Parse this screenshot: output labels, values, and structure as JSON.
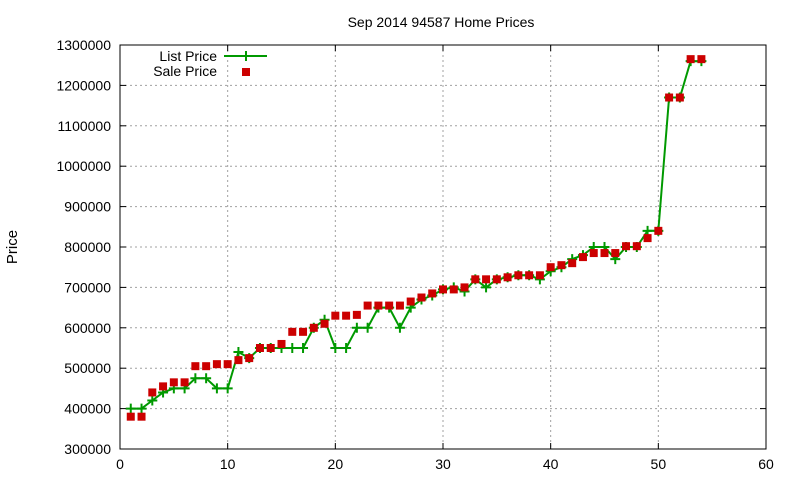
{
  "chart_data": {
    "type": "line",
    "title": "Sep 2014 94587 Home Prices",
    "xlabel": "",
    "ylabel": "Price",
    "xlim": [
      0,
      60
    ],
    "ylim": [
      300000,
      1300000
    ],
    "xticks": [
      0,
      10,
      20,
      30,
      40,
      50,
      60
    ],
    "yticks": [
      300000,
      400000,
      500000,
      600000,
      700000,
      800000,
      900000,
      1000000,
      1100000,
      1200000,
      1300000
    ],
    "grid": true,
    "legend_position": "top-left",
    "series": [
      {
        "name": "List Price",
        "style": "line+cross",
        "color": "#009900",
        "x": [
          1,
          2,
          3,
          4,
          5,
          6,
          7,
          8,
          9,
          10,
          11,
          12,
          13,
          14,
          15,
          16,
          17,
          18,
          19,
          20,
          21,
          22,
          23,
          24,
          25,
          26,
          27,
          28,
          29,
          30,
          31,
          32,
          33,
          34,
          35,
          36,
          37,
          38,
          39,
          40,
          41,
          42,
          43,
          44,
          45,
          46,
          47,
          48,
          49,
          50,
          51,
          52,
          53,
          54
        ],
        "y": [
          400000,
          400000,
          420000,
          440000,
          450000,
          450000,
          475000,
          475000,
          450000,
          450000,
          540000,
          525000,
          550000,
          550000,
          550000,
          550000,
          550000,
          600000,
          620000,
          550000,
          550000,
          600000,
          600000,
          650000,
          650000,
          600000,
          650000,
          670000,
          680000,
          695000,
          700000,
          690000,
          720000,
          700000,
          720000,
          725000,
          730000,
          730000,
          720000,
          740000,
          750000,
          770000,
          780000,
          800000,
          800000,
          770000,
          800000,
          800000,
          840000,
          840000,
          1170000,
          1170000,
          1260000,
          1260000
        ]
      },
      {
        "name": "Sale Price",
        "style": "square-points",
        "color": "#cc0000",
        "x": [
          1,
          2,
          3,
          4,
          5,
          6,
          7,
          8,
          9,
          10,
          11,
          12,
          13,
          14,
          15,
          16,
          17,
          18,
          19,
          20,
          21,
          22,
          23,
          24,
          25,
          26,
          27,
          28,
          29,
          30,
          31,
          32,
          33,
          34,
          35,
          36,
          37,
          38,
          39,
          40,
          41,
          42,
          43,
          44,
          45,
          46,
          47,
          48,
          49,
          50,
          51,
          52,
          53,
          54
        ],
        "y": [
          380000,
          380000,
          440000,
          455000,
          465000,
          465000,
          505000,
          505000,
          510000,
          510000,
          520000,
          525000,
          550000,
          550000,
          560000,
          590000,
          590000,
          600000,
          610000,
          630000,
          630000,
          632000,
          655000,
          655000,
          655000,
          655000,
          665000,
          675000,
          685000,
          695000,
          695000,
          700000,
          720000,
          720000,
          720000,
          725000,
          730000,
          730000,
          730000,
          750000,
          755000,
          760000,
          775000,
          785000,
          785000,
          785000,
          802000,
          802000,
          822000,
          840000,
          1170000,
          1170000,
          1265000,
          1265000
        ]
      }
    ]
  }
}
